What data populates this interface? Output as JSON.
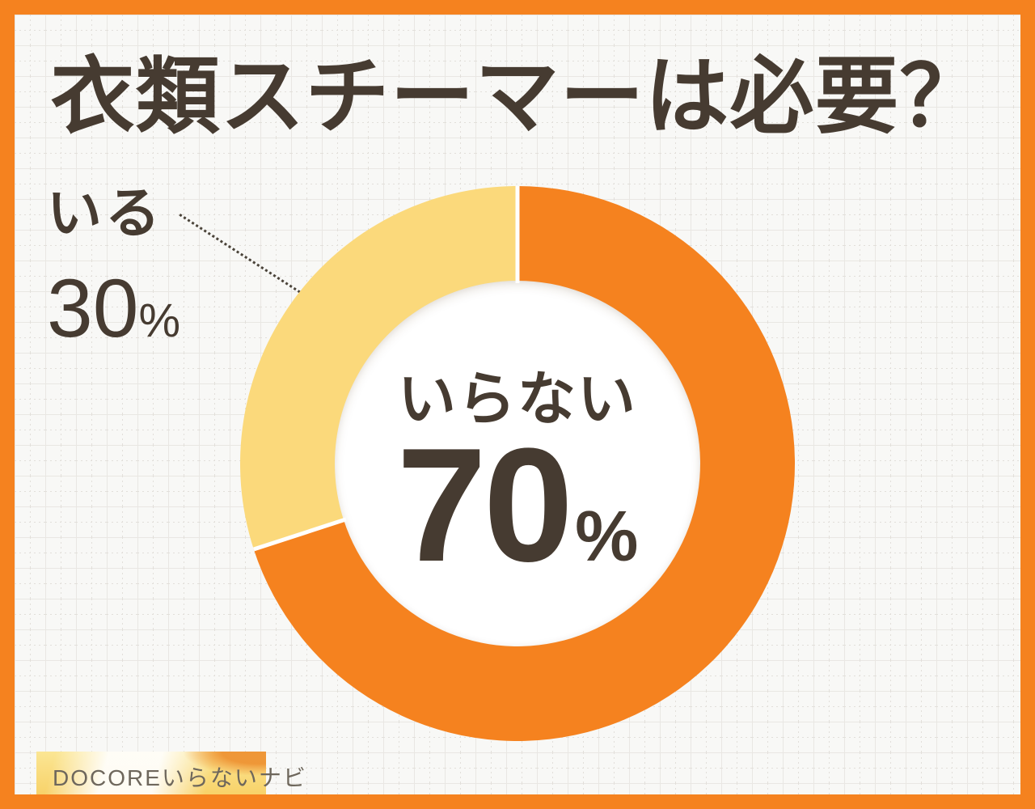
{
  "title": "衣類スチーマーは必要？",
  "chart_data": {
    "type": "pie",
    "donut": true,
    "title": "衣類スチーマーは必要？",
    "start_angle_deg": 0,
    "direction": "clockwise",
    "inner_radius_ratio": 0.66,
    "slices": [
      {
        "label": "いらない",
        "value": 70,
        "color": "#F5821F",
        "label_position": "center"
      },
      {
        "label": "いる",
        "value": 30,
        "color": "#FBD97B",
        "label_position": "outside-left"
      }
    ]
  },
  "callout": {
    "label": "いる",
    "value": "30",
    "unit": "%"
  },
  "center": {
    "label": "いらない",
    "value": "70",
    "unit": "%"
  },
  "badge": {
    "text": "DOCOREいらないナビ"
  },
  "colors": {
    "frame_orange": "#F5821F",
    "slice_orange": "#F5821F",
    "slice_yellow": "#FBD97B",
    "text_dark": "#463B31",
    "badge_text": "#6E675C",
    "background": "#F8F8F6"
  }
}
